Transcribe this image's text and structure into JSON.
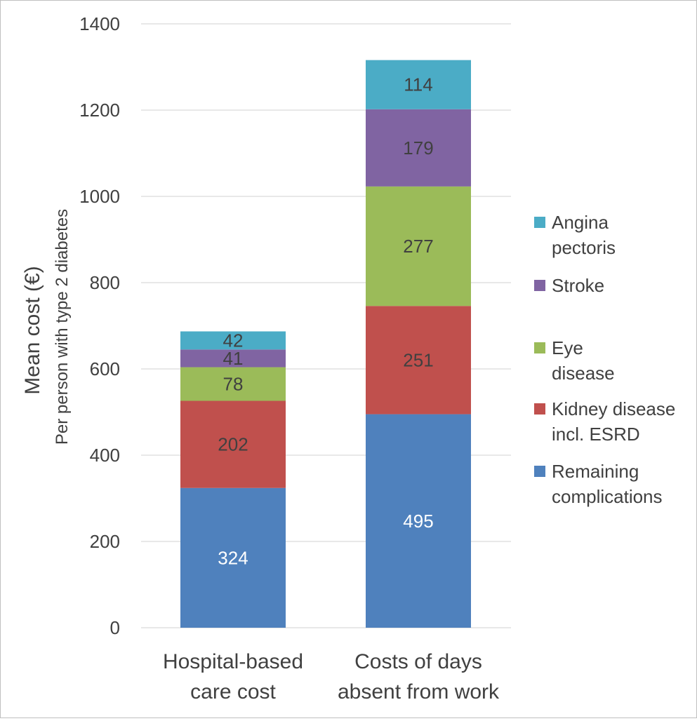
{
  "chart_data": {
    "type": "bar",
    "stacked": true,
    "categories": [
      [
        "Hospital-based",
        "care cost"
      ],
      [
        "Costs of days",
        "absent from work"
      ]
    ],
    "series": [
      {
        "name": "Remaining complications",
        "legend_lines": [
          "Remaining",
          "complications"
        ],
        "values": [
          324,
          495
        ],
        "color": "#4f81bd",
        "label_color": "#ffffff"
      },
      {
        "name": "Kidney disease incl. ESRD",
        "legend_lines": [
          "Kidney disease",
          "incl. ESRD"
        ],
        "values": [
          202,
          251
        ],
        "color": "#c0504d",
        "label_color": "#404040"
      },
      {
        "name": "Eye disease",
        "legend_lines": [
          "Eye",
          "disease"
        ],
        "values": [
          78,
          277
        ],
        "color": "#9bbb59",
        "label_color": "#404040"
      },
      {
        "name": "Stroke",
        "legend_lines": [
          "Stroke"
        ],
        "values": [
          41,
          179
        ],
        "color": "#8064a2",
        "label_color": "#404040"
      },
      {
        "name": "Angina pectoris",
        "legend_lines": [
          "Angina",
          "pectoris"
        ],
        "values": [
          42,
          114
        ],
        "color": "#4bacc6",
        "label_color": "#404040"
      }
    ],
    "ylabel": "Mean cost  (€)",
    "ylabel_sub": "Per person with type 2 diabetes",
    "ylim": [
      0,
      1400
    ],
    "yticks": [
      0,
      200,
      400,
      600,
      800,
      1000,
      1200,
      1400
    ],
    "grid": true,
    "legend_position": "right",
    "colors": {
      "grid": "#d9d9d9",
      "text": "#404040",
      "border": "#bfbfbf"
    }
  }
}
